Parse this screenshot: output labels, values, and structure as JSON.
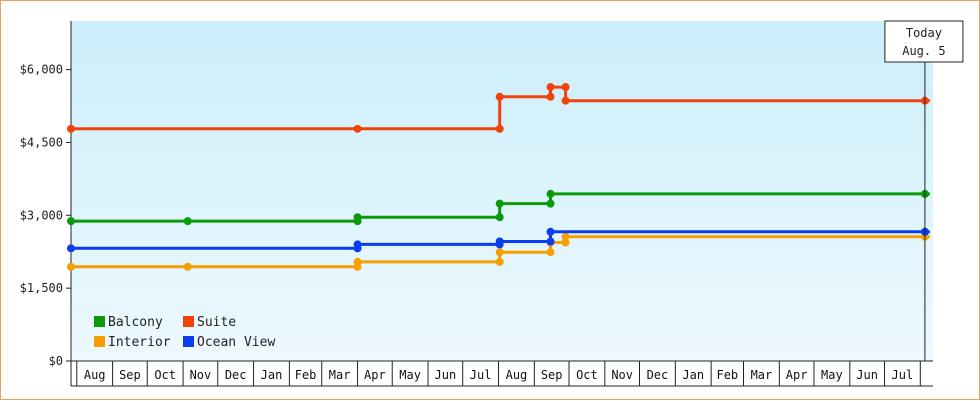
{
  "chart_data": {
    "type": "line",
    "step": true,
    "title": "",
    "xlabel": "",
    "ylabel": "",
    "x_range": [
      "2016-07-27",
      "2018-08-12"
    ],
    "ylim": [
      0,
      7000
    ],
    "y_ticks": [
      0,
      1500,
      3000,
      4500,
      6000
    ],
    "y_tick_labels": [
      "$0",
      "$1,500",
      "$3,000",
      "$4,500",
      "$6,000"
    ],
    "month_ticks": [
      "Aug",
      "Sep",
      "Oct",
      "Nov",
      "Dec",
      "Jan",
      "Feb",
      "Mar",
      "Apr",
      "May",
      "Jun",
      "Jul",
      "Aug",
      "Sep",
      "Oct",
      "Nov",
      "Dec",
      "Jan",
      "Feb",
      "Mar",
      "Apr",
      "May",
      "Jun",
      "Jul"
    ],
    "month_starts": [
      "2016-08-01",
      "2016-09-01",
      "2016-10-01",
      "2016-11-01",
      "2016-12-01",
      "2017-01-01",
      "2017-02-01",
      "2017-03-01",
      "2017-04-01",
      "2017-05-01",
      "2017-06-01",
      "2017-07-01",
      "2017-08-01",
      "2017-09-01",
      "2017-10-01",
      "2017-11-01",
      "2017-12-01",
      "2018-01-01",
      "2018-02-01",
      "2018-03-01",
      "2018-04-01",
      "2018-05-01",
      "2018-06-01",
      "2018-07-01",
      "2018-08-01"
    ],
    "background_gradient": [
      "#cbeefb",
      "#eef9fe"
    ],
    "grid": true,
    "legend_position": "bottom-left",
    "today": {
      "date": "2018-08-05",
      "label_line1": "Today",
      "label_line2": "Aug. 5"
    },
    "series": [
      {
        "name": "Balcony",
        "color": "#0a9a0a",
        "points": [
          [
            "2016-07-27",
            2880
          ],
          [
            "2016-11-05",
            2880
          ],
          [
            "2017-04-01",
            2880
          ],
          [
            "2017-04-01",
            2960
          ],
          [
            "2017-08-02",
            2960
          ],
          [
            "2017-08-02",
            3240
          ],
          [
            "2017-09-15",
            3240
          ],
          [
            "2017-09-15",
            3440
          ],
          [
            "2018-08-05",
            3440
          ]
        ]
      },
      {
        "name": "Suite",
        "color": "#f2420c",
        "points": [
          [
            "2016-07-27",
            4780
          ],
          [
            "2017-04-01",
            4780
          ],
          [
            "2017-08-02",
            4780
          ],
          [
            "2017-08-02",
            5440
          ],
          [
            "2017-09-15",
            5440
          ],
          [
            "2017-09-15",
            5640
          ],
          [
            "2017-09-28",
            5640
          ],
          [
            "2017-09-28",
            5360
          ],
          [
            "2018-08-05",
            5360
          ]
        ]
      },
      {
        "name": "Interior",
        "color": "#f5a000",
        "points": [
          [
            "2016-07-27",
            1940
          ],
          [
            "2016-11-05",
            1940
          ],
          [
            "2017-04-01",
            1940
          ],
          [
            "2017-04-01",
            2040
          ],
          [
            "2017-08-02",
            2040
          ],
          [
            "2017-08-02",
            2240
          ],
          [
            "2017-09-15",
            2240
          ],
          [
            "2017-09-15",
            2440
          ],
          [
            "2017-09-28",
            2440
          ],
          [
            "2017-09-28",
            2560
          ],
          [
            "2018-08-05",
            2560
          ]
        ]
      },
      {
        "name": "Ocean View",
        "color": "#0a3cf0",
        "points": [
          [
            "2016-07-27",
            2320
          ],
          [
            "2017-04-01",
            2320
          ],
          [
            "2017-04-01",
            2400
          ],
          [
            "2017-08-02",
            2400
          ],
          [
            "2017-08-02",
            2460
          ],
          [
            "2017-09-15",
            2460
          ],
          [
            "2017-09-15",
            2660
          ],
          [
            "2018-08-05",
            2660
          ]
        ]
      }
    ],
    "legend": [
      {
        "label": "Balcony",
        "color": "#0a9a0a"
      },
      {
        "label": "Suite",
        "color": "#f2420c"
      },
      {
        "label": "Interior",
        "color": "#f5a000"
      },
      {
        "label": "Ocean View",
        "color": "#0a3cf0"
      }
    ]
  }
}
